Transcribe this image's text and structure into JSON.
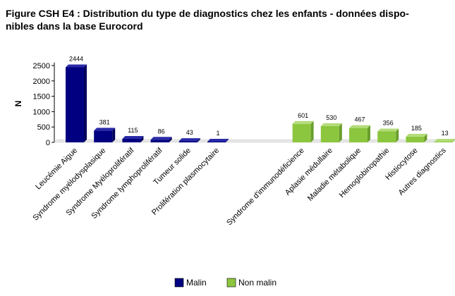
{
  "chart_data": {
    "type": "bar",
    "title": "Figure CSH E4 : Distribution du type de diagnostics chez les enfants - données disponibles dans la base Eurocord",
    "title_lines": [
      "Figure CSH E4 : Distribution du type de diagnostics chez les enfants - données dispo-",
      "nibles dans la base Eurocord"
    ],
    "ylabel": "N",
    "xlabel": "",
    "ylim": [
      0,
      2600
    ],
    "yticks": [
      0,
      500,
      1000,
      1500,
      2000,
      2500
    ],
    "grid": false,
    "legend_position": "bottom",
    "series": [
      {
        "name": "Malin",
        "color": "#000080",
        "categories": [
          "Leucémie Aigue",
          "Syndrome myélodysplasique",
          "Syndrome Myéloprolifératif",
          "Syndrome lymphoprolifératif",
          "Tumeur solide",
          "Prolifération plasmocytaire"
        ],
        "values": [
          2444,
          381,
          115,
          86,
          43,
          1
        ]
      },
      {
        "name": "Non malin",
        "color": "#8cc63f",
        "categories": [
          "Syndrome d'immunodéficience",
          "Aplasie médullaire",
          "Maladie métabolique",
          "Hemoglobinopathie",
          "Histiocytose",
          "Autres diagnostics"
        ],
        "values": [
          601,
          530,
          467,
          356,
          185,
          13
        ]
      }
    ]
  }
}
